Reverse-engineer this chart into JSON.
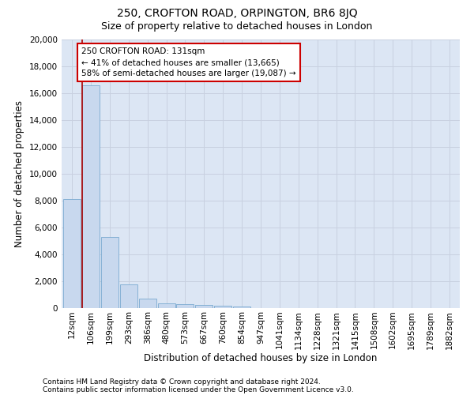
{
  "title": "250, CROFTON ROAD, ORPINGTON, BR6 8JQ",
  "subtitle": "Size of property relative to detached houses in London",
  "xlabel": "Distribution of detached houses by size in London",
  "ylabel": "Number of detached properties",
  "footer_line1": "Contains HM Land Registry data © Crown copyright and database right 2024.",
  "footer_line2": "Contains public sector information licensed under the Open Government Licence v3.0.",
  "bar_labels": [
    "12sqm",
    "106sqm",
    "199sqm",
    "293sqm",
    "386sqm",
    "480sqm",
    "573sqm",
    "667sqm",
    "760sqm",
    "854sqm",
    "947sqm",
    "1041sqm",
    "1134sqm",
    "1228sqm",
    "1321sqm",
    "1415sqm",
    "1508sqm",
    "1602sqm",
    "1695sqm",
    "1789sqm",
    "1882sqm"
  ],
  "bar_values": [
    8100,
    16600,
    5300,
    1750,
    700,
    370,
    290,
    230,
    180,
    140,
    0,
    0,
    0,
    0,
    0,
    0,
    0,
    0,
    0,
    0,
    0
  ],
  "bar_color": "#c8d8ee",
  "bar_edge_color": "#7aaad0",
  "vline_color": "#aa0000",
  "annotation_text": "250 CROFTON ROAD: 131sqm\n← 41% of detached houses are smaller (13,665)\n58% of semi-detached houses are larger (19,087) →",
  "annotation_box_facecolor": "#ffffff",
  "annotation_box_edgecolor": "#cc0000",
  "ylim": [
    0,
    20000
  ],
  "yticks": [
    0,
    2000,
    4000,
    6000,
    8000,
    10000,
    12000,
    14000,
    16000,
    18000,
    20000
  ],
  "grid_color": "#c8d0e0",
  "background_color": "#dce6f4",
  "title_fontsize": 10,
  "subtitle_fontsize": 9,
  "xlabel_fontsize": 8.5,
  "ylabel_fontsize": 8.5,
  "tick_fontsize": 7.5,
  "annot_fontsize": 7.5,
  "footer_fontsize": 6.5
}
